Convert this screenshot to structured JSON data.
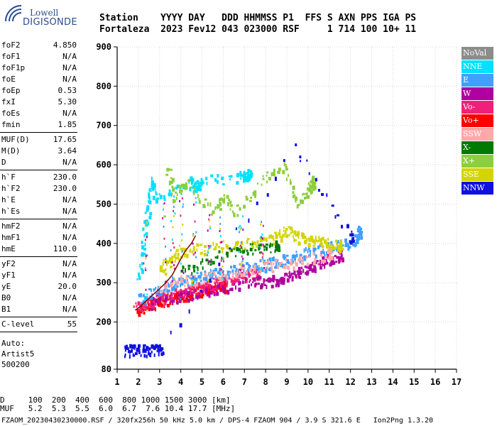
{
  "logo": {
    "line1": "Lowell",
    "line2": "DIGISONDE"
  },
  "header": {
    "row1": "Station    YYYY DAY   DDD HHMMSS P1  FFS S AXN PPS IGA PS",
    "row2": "Fortaleza  2023 Fev12 043 023000 RSF     1 714 100 10+ 11"
  },
  "params": [
    {
      "name": "foF2",
      "value": "4.850"
    },
    {
      "name": "foF1",
      "value": "N/A"
    },
    {
      "name": "foF1p",
      "value": "N/A"
    },
    {
      "name": "foE",
      "value": "N/A"
    },
    {
      "name": "foEp",
      "value": "0.53"
    },
    {
      "name": "fxI",
      "value": "5.30"
    },
    {
      "name": "foEs",
      "value": "N/A"
    },
    {
      "name": "fmin",
      "value": "1.85"
    },
    {
      "name": "MUF(D)",
      "value": "17.65"
    },
    {
      "name": "M(D)",
      "value": "3.64"
    },
    {
      "name": "D",
      "value": "N/A"
    },
    {
      "name": "h`F",
      "value": "230.0"
    },
    {
      "name": "h`F2",
      "value": "230.0"
    },
    {
      "name": "h`E",
      "value": "N/A"
    },
    {
      "name": "h`Es",
      "value": "N/A"
    },
    {
      "name": "hmF2",
      "value": "N/A"
    },
    {
      "name": "hmF1",
      "value": "N/A"
    },
    {
      "name": "hmE",
      "value": "110.0"
    },
    {
      "name": "yF2",
      "value": "N/A"
    },
    {
      "name": "yF1",
      "value": "N/A"
    },
    {
      "name": "yE",
      "value": "20.0"
    },
    {
      "name": "B0",
      "value": "N/A"
    },
    {
      "name": "B1",
      "value": "N/A"
    },
    {
      "name": "C-level",
      "value": "55"
    }
  ],
  "auto": {
    "line1": "Auto:",
    "line2": "Artist5",
    "line3": "500200"
  },
  "legend": [
    {
      "label": "NoVal",
      "color": "#8c8c8c"
    },
    {
      "label": "NNE",
      "color": "#00e0ff"
    },
    {
      "label": "E",
      "color": "#3fa0ff"
    },
    {
      "label": "W",
      "color": "#b0009f"
    },
    {
      "label": "Vo-",
      "color": "#f0207a"
    },
    {
      "label": "Vo+",
      "color": "#ff0000"
    },
    {
      "label": "SSW",
      "color": "#ffa8a8"
    },
    {
      "label": "X-",
      "color": "#007a00"
    },
    {
      "label": "X+",
      "color": "#8ccf3c"
    },
    {
      "label": "SSE",
      "color": "#d4d400"
    },
    {
      "label": "NNW",
      "color": "#1010e0"
    }
  ],
  "footer": {
    "d_row": "D     100  200  400  600  800 1000 1500 3000 [km]",
    "muf_row": "MUF   5.2  5.3  5.5  6.0  6.7  7.6 10.4 17.7 [MHz]",
    "file_row": "FZAOM_20230430230000.RSF / 320fx256h 50 kHz 5.0 km / DPS-4 FZAOM 904 / 3.9 S 321.6 E   Ion2Png 1.3.20"
  },
  "chart_data": {
    "type": "scatter",
    "xlim": [
      1,
      17
    ],
    "ylim": [
      80,
      900
    ],
    "x_ticks": [
      1,
      2,
      3,
      4,
      5,
      6,
      7,
      8,
      9,
      10,
      11,
      12,
      13,
      14,
      15,
      16,
      17
    ],
    "y_ticks": [
      80,
      200,
      300,
      400,
      500,
      600,
      700,
      800,
      900
    ],
    "grid": true,
    "legend_position": "right",
    "traces": [
      {
        "color": "#ff0000",
        "points": [
          [
            1.85,
            230
          ],
          [
            2.2,
            240
          ],
          [
            2.6,
            248
          ],
          [
            3.0,
            255
          ],
          [
            3.4,
            262
          ],
          [
            3.8,
            268
          ],
          [
            4.2,
            272
          ],
          [
            4.6,
            276
          ],
          [
            5.0,
            282
          ],
          [
            5.5,
            288
          ],
          [
            6.0,
            294
          ]
        ]
      },
      {
        "color": "#f0207a",
        "points": [
          [
            1.9,
            240
          ],
          [
            2.4,
            252
          ],
          [
            2.9,
            262
          ],
          [
            3.4,
            270
          ],
          [
            3.9,
            276
          ],
          [
            4.4,
            282
          ],
          [
            4.9,
            290
          ],
          [
            5.4,
            298
          ],
          [
            5.9,
            304
          ],
          [
            6.5,
            312
          ],
          [
            7.0,
            318
          ],
          [
            7.6,
            326
          ]
        ]
      },
      {
        "color": "#b0009f",
        "points": [
          [
            2.5,
            248
          ],
          [
            3.5,
            262
          ],
          [
            4.5,
            272
          ],
          [
            5.5,
            282
          ],
          [
            6.5,
            295
          ],
          [
            7.5,
            305
          ],
          [
            8.0,
            300
          ],
          [
            8.5,
            310
          ],
          [
            9.0,
            318
          ],
          [
            9.5,
            328
          ],
          [
            10.0,
            340
          ],
          [
            10.5,
            352
          ],
          [
            11.0,
            362
          ],
          [
            11.5,
            372
          ]
        ]
      },
      {
        "color": "#3fa0ff",
        "points": [
          [
            2.0,
            262
          ],
          [
            2.6,
            275
          ],
          [
            3.2,
            290
          ],
          [
            3.8,
            300
          ],
          [
            4.4,
            310
          ],
          [
            5.0,
            318
          ],
          [
            5.6,
            325
          ],
          [
            6.2,
            330
          ],
          [
            6.8,
            337
          ],
          [
            7.4,
            343
          ],
          [
            8.0,
            350
          ],
          [
            8.6,
            357
          ],
          [
            9.2,
            365
          ],
          [
            9.8,
            375
          ],
          [
            10.4,
            385
          ],
          [
            11.0,
            392
          ],
          [
            11.6,
            400
          ],
          [
            12.2,
            410
          ],
          [
            12.4,
            432
          ]
        ]
      },
      {
        "color": "#ffa8a8",
        "points": [
          [
            3.0,
            290
          ],
          [
            4.0,
            305
          ],
          [
            5.0,
            315
          ],
          [
            6.0,
            322
          ],
          [
            7.0,
            330
          ],
          [
            8.0,
            342
          ],
          [
            9.0,
            352
          ],
          [
            10.0,
            360
          ],
          [
            11.0,
            376
          ]
        ]
      },
      {
        "color": "#d4d400",
        "points": [
          [
            3.0,
            330
          ],
          [
            3.5,
            360
          ],
          [
            4.0,
            380
          ],
          [
            5.0,
            390
          ],
          [
            6.0,
            395
          ],
          [
            7.0,
            400
          ],
          [
            8.0,
            405
          ],
          [
            8.5,
            420
          ],
          [
            9.0,
            440
          ],
          [
            9.5,
            420
          ],
          [
            10.0,
            410
          ],
          [
            10.5,
            405
          ],
          [
            11.0,
            400
          ],
          [
            11.5,
            395
          ]
        ]
      },
      {
        "color": "#00e0ff",
        "points": [
          [
            2.0,
            300
          ],
          [
            2.2,
            400
          ],
          [
            2.4,
            480
          ],
          [
            2.6,
            560
          ],
          [
            2.8,
            520
          ],
          [
            4.4,
            560
          ],
          [
            4.6,
            545
          ],
          [
            4.8,
            550
          ],
          [
            5.0,
            560
          ],
          [
            6.8,
            570
          ],
          [
            7.0,
            580
          ],
          [
            7.2,
            575
          ]
        ]
      },
      {
        "color": "#1010e0",
        "points": [
          [
            1.3,
            128
          ],
          [
            1.6,
            130
          ],
          [
            2.0,
            132
          ],
          [
            2.4,
            129
          ],
          [
            2.8,
            131
          ],
          [
            3.1,
            130
          ],
          [
            9.3,
            650
          ],
          [
            12.0,
            420
          ]
        ]
      },
      {
        "color": "#8ccf3c",
        "points": [
          [
            3.3,
            600
          ],
          [
            3.7,
            520
          ],
          [
            4.3,
            560
          ],
          [
            5.5,
            480
          ],
          [
            6.0,
            520
          ],
          [
            6.5,
            480
          ],
          [
            7.8,
            560
          ],
          [
            8.8,
            600
          ],
          [
            9.5,
            500
          ],
          [
            10.0,
            540
          ],
          [
            10.2,
            560
          ]
        ]
      },
      {
        "color": "#007a00",
        "points": [
          [
            4.0,
            330
          ],
          [
            5.0,
            355
          ],
          [
            6.5,
            380
          ],
          [
            7.5,
            390
          ],
          [
            8.5,
            395
          ]
        ]
      }
    ],
    "curve_color": "#800000",
    "curve": [
      [
        1.85,
        230
      ],
      [
        2.1,
        240
      ],
      [
        2.4,
        255
      ],
      [
        2.7,
        270
      ],
      [
        3.0,
        285
      ],
      [
        3.3,
        300
      ],
      [
        3.6,
        320
      ],
      [
        3.9,
        350
      ],
      [
        4.2,
        380
      ],
      [
        4.5,
        400
      ],
      [
        4.7,
        420
      ]
    ]
  }
}
